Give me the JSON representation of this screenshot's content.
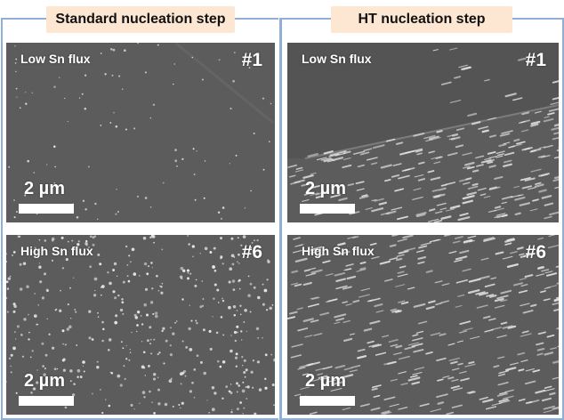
{
  "columns": [
    {
      "header": "Standard nucleation step",
      "panels": [
        {
          "flux": "Low Sn flux",
          "sample": "#1",
          "scale": "2 µm"
        },
        {
          "flux": "High Sn flux",
          "sample": "#6",
          "scale": "2 µm"
        }
      ]
    },
    {
      "header": "HT nucleation step",
      "panels": [
        {
          "flux": "Low Sn flux",
          "sample": "#1",
          "scale": "2 µm"
        },
        {
          "flux": "High Sn flux",
          "sample": "#6",
          "scale": "2 µm"
        }
      ]
    }
  ],
  "colors": {
    "frame_border": "#8fb0d6",
    "header_fill": "#fde6d2",
    "sem_background": "#5c5c5c",
    "feature_color": "#e8e8e8"
  }
}
